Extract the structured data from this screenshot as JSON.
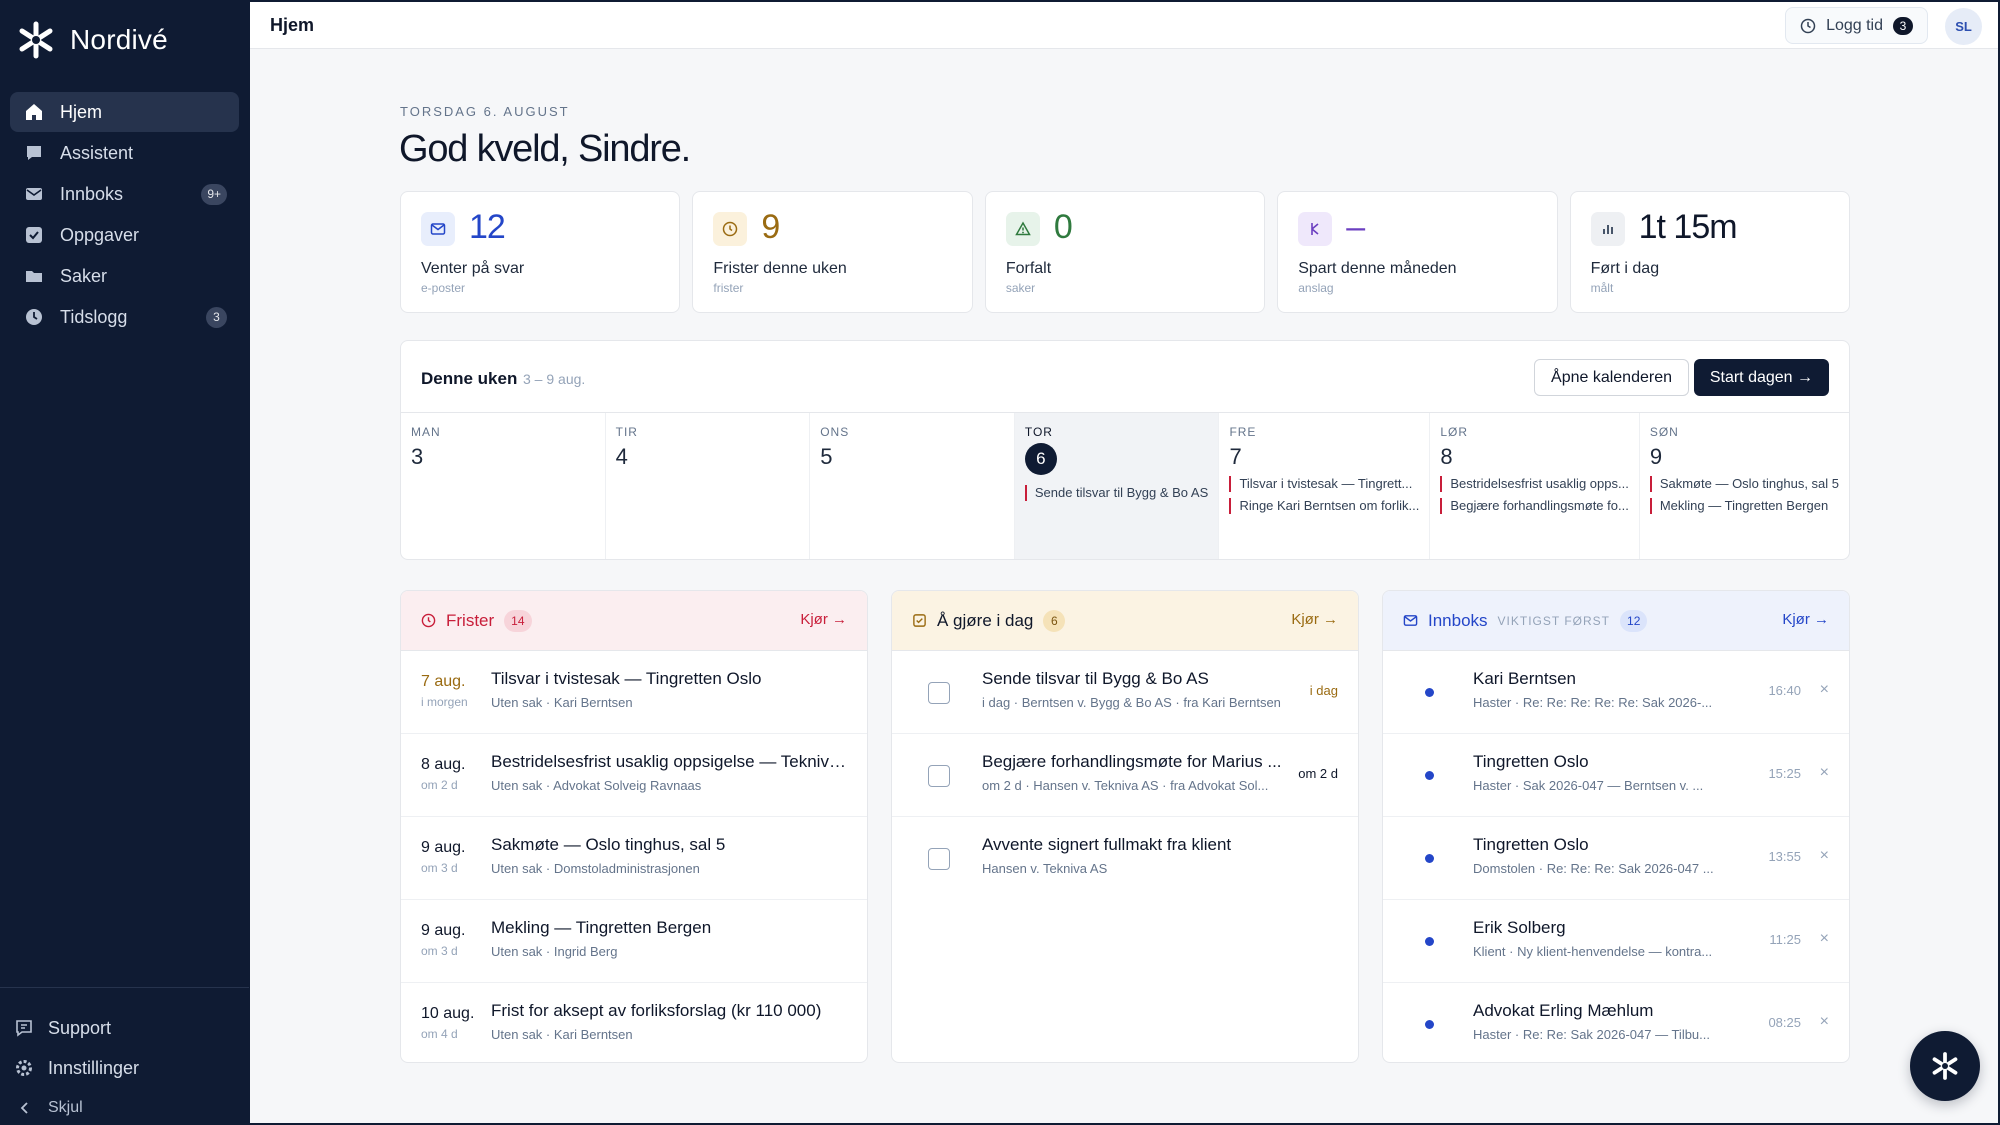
{
  "app": {
    "name": "Nordivé"
  },
  "sidebar": {
    "items": [
      {
        "label": "Hjem",
        "icon": "home-icon",
        "active": true
      },
      {
        "label": "Assistent",
        "icon": "chat-icon"
      },
      {
        "label": "Innboks",
        "icon": "mail-icon",
        "badge": "9+"
      },
      {
        "label": "Oppgaver",
        "icon": "checkbox-icon"
      },
      {
        "label": "Saker",
        "icon": "folder-icon"
      },
      {
        "label": "Tidslogg",
        "icon": "clock-icon",
        "badge": "3"
      }
    ],
    "support": "Support",
    "settings": "Innstillinger",
    "hide": "Skjul"
  },
  "topbar": {
    "title": "Hjem",
    "log_label": "Logg tid",
    "log_count": "3",
    "avatar": "SL"
  },
  "header": {
    "date": "TORSDAG 6. AUGUST",
    "greeting": "God kveld, Sindre."
  },
  "stats": [
    {
      "value": "12",
      "label": "Venter på svar",
      "sub": "e-poster",
      "color": "#2446c8",
      "bg": "#e8eefc",
      "icon": "mail-icon"
    },
    {
      "value": "9",
      "label": "Frister denne uken",
      "sub": "frister",
      "color": "#9a6b12",
      "bg": "#fbf1dc",
      "icon": "clock-icon"
    },
    {
      "value": "0",
      "label": "Forfalt",
      "sub": "saker",
      "color": "#2f7a3e",
      "bg": "#e7f3ea",
      "icon": "warning-icon"
    },
    {
      "value": "–",
      "label": "Spart denne måneden",
      "sub": "anslag",
      "color": "#6b3fc0",
      "bg": "#efe8fb",
      "icon": "currency-icon"
    },
    {
      "value": "1t 15m",
      "label": "Ført i dag",
      "sub": "målt",
      "color": "#0f172a",
      "bg": "#eef0f3",
      "icon": "bar-chart-icon"
    }
  ],
  "week": {
    "title": "Denne uken",
    "range": "3 – 9 aug.",
    "open_calendar": "Åpne kalenderen",
    "start_day": "Start dagen →",
    "days": [
      {
        "name": "MAN",
        "num": "3",
        "events": []
      },
      {
        "name": "TIR",
        "num": "4",
        "events": []
      },
      {
        "name": "ONS",
        "num": "5",
        "events": []
      },
      {
        "name": "TOR",
        "num": "6",
        "today": true,
        "events": [
          "Sende tilsvar til Bygg & Bo AS"
        ]
      },
      {
        "name": "FRE",
        "num": "7",
        "events": [
          "Tilsvar i tvistesak — Tingrett...",
          "Ringe Kari Berntsen om forlik..."
        ]
      },
      {
        "name": "LØR",
        "num": "8",
        "events": [
          "Bestridelsesfrist usaklig opps...",
          "Begjære forhandlingsmøte fo..."
        ]
      },
      {
        "name": "SØN",
        "num": "9",
        "events": [
          "Sakmøte — Oslo tinghus, sal 5",
          "Mekling — Tingretten Bergen"
        ]
      }
    ]
  },
  "deadlines": {
    "title": "Frister",
    "count": "14",
    "action": "Kjør →",
    "accent": "#c81e3a",
    "rows": [
      {
        "date": "7 aug.",
        "rel": "i morgen",
        "title": "Tilsvar i tvistesak — Tingretten Oslo",
        "sub": "Uten sak · Kari Berntsen",
        "highlight": true
      },
      {
        "date": "8 aug.",
        "rel": "om 2 d",
        "title": "Bestridelsesfrist usaklig oppsigelse — Tekniva ...",
        "sub": "Uten sak · Advokat Solveig Ravnaas"
      },
      {
        "date": "9 aug.",
        "rel": "om 3 d",
        "title": "Sakmøte — Oslo tinghus, sal 5",
        "sub": "Uten sak · Domstoladministrasjonen"
      },
      {
        "date": "9 aug.",
        "rel": "om 3 d",
        "title": "Mekling — Tingretten Bergen",
        "sub": "Uten sak · Ingrid Berg"
      },
      {
        "date": "10 aug.",
        "rel": "om 4 d",
        "title": "Frist for aksept av forliksforslag (kr 110 000)",
        "sub": "Uten sak · Kari Berntsen"
      }
    ]
  },
  "todos": {
    "title": "Å gjøre i dag",
    "count": "6",
    "action": "Kjør →",
    "accent": "#9a6b12",
    "rows": [
      {
        "title": "Sende tilsvar til Bygg & Bo AS",
        "sub": "i dag · Berntsen v. Bygg & Bo AS · fra Kari Berntsen",
        "due": "i dag"
      },
      {
        "title": "Begjære forhandlingsmøte for Marius ...",
        "sub": "om 2 d · Hansen v. Tekniva AS · fra Advokat Sol...",
        "due": "om 2 d"
      },
      {
        "title": "Avvente signert fullmakt fra klient",
        "sub": "Hansen v. Tekniva AS",
        "due": ""
      }
    ]
  },
  "inbox": {
    "title": "Innboks",
    "subtitle": "VIKTIGST FØRST",
    "count": "12",
    "action": "Kjør →",
    "accent": "#2446c8",
    "rows": [
      {
        "from": "Kari Berntsen",
        "sub": "Haster · Re: Re: Re: Re: Re: Sak 2026-...",
        "time": "16:40"
      },
      {
        "from": "Tingretten Oslo",
        "sub": "Haster · Sak 2026-047 — Berntsen v. ...",
        "time": "15:25"
      },
      {
        "from": "Tingretten Oslo",
        "sub": "Domstolen · Re: Re: Re: Sak 2026-047 ...",
        "time": "13:55"
      },
      {
        "from": "Erik Solberg",
        "sub": "Klient · Ny klient-henvendelse — kontra...",
        "time": "11:25"
      },
      {
        "from": "Advokat Erling Mæhlum",
        "sub": "Haster · Re: Re: Sak 2026-047 — Tilbu...",
        "time": "08:25"
      }
    ]
  }
}
